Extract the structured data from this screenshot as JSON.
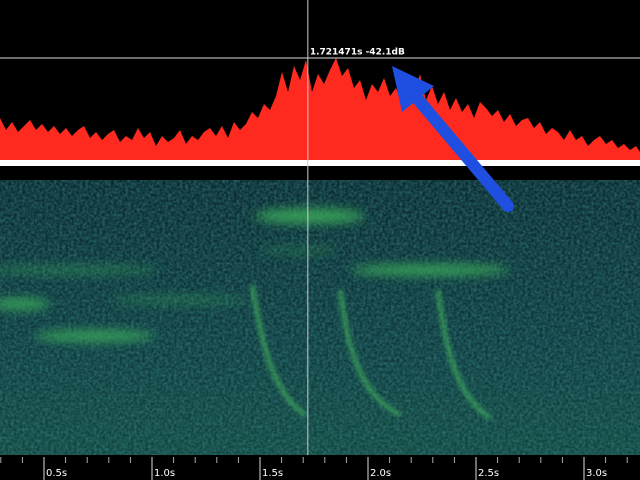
{
  "cursor": {
    "time": 1.721471,
    "level": -42.1,
    "label": "1.721471s -42.1dB"
  },
  "time_axis": {
    "ticks": [
      {
        "value": 0.5,
        "label": "0.5s"
      },
      {
        "value": 1.0,
        "label": "1.0s"
      },
      {
        "value": 1.5,
        "label": "1.5s"
      },
      {
        "value": 2.0,
        "label": "2.0s"
      },
      {
        "value": 2.5,
        "label": "2.5s"
      },
      {
        "value": 3.0,
        "label": "3.0s"
      }
    ]
  }
}
